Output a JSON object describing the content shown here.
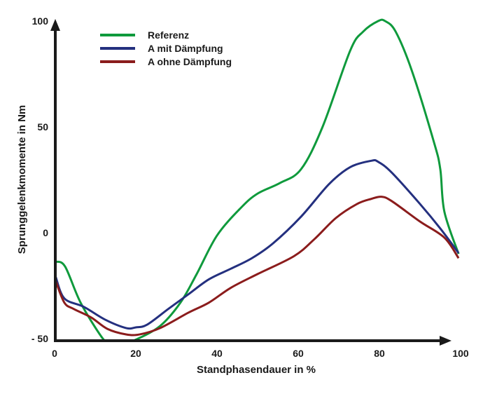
{
  "chart_data": {
    "type": "line",
    "title": "",
    "xlabel": "Standphasendauer in %",
    "ylabel": "Sprunggelenkmomente in Nm",
    "xlim": [
      0,
      100
    ],
    "ylim": [
      -50,
      100
    ],
    "xticks": [
      "0",
      "20",
      "40",
      "60",
      "80",
      "100"
    ],
    "yticks": [
      "- 50",
      "0",
      "50",
      "100"
    ],
    "grid": false,
    "legend_position": "top-left",
    "series": [
      {
        "name": "Referenz",
        "color": "#0f9a3c",
        "x": [
          0.3,
          2.6,
          6.4,
          11.5,
          13,
          16,
          20,
          26,
          31,
          35,
          40,
          46,
          50,
          55.5,
          60.7,
          66,
          72.8,
          76,
          79.7,
          81.4,
          84,
          88,
          93.4,
          95,
          96,
          99.5
        ],
        "y": [
          -13.6,
          -16,
          -33,
          -49,
          -51,
          -53,
          -50.5,
          -44,
          -33,
          -19.5,
          -1.3,
          12,
          18.5,
          23.5,
          30,
          50,
          86,
          95,
          100,
          100,
          95,
          76.5,
          43,
          30,
          10,
          -10
        ]
      },
      {
        "name": "A mit Dämpfung",
        "color": "#24307f",
        "x": [
          0.3,
          2.4,
          7.2,
          12.4,
          17.6,
          20,
          22.8,
          28,
          33,
          38,
          43.4,
          48.6,
          53.8,
          60.7,
          67.6,
          72.8,
          78,
          79.7,
          83,
          90,
          95,
          99.5
        ],
        "y": [
          -21,
          -31,
          -35,
          -41,
          -45,
          -44.7,
          -43.4,
          -36,
          -29,
          -22,
          -17,
          -12,
          -5,
          7.6,
          23,
          31,
          34,
          33.5,
          28.5,
          13.6,
          2,
          -9.6
        ]
      },
      {
        "name": "A ohne Dämpfung",
        "color": "#8b1c1c",
        "x": [
          0.3,
          2.4,
          4.7,
          9,
          13,
          17.6,
          21,
          26,
          33,
          38,
          43.4,
          50,
          59,
          64,
          69.3,
          74.5,
          78,
          80.5,
          83,
          90,
          96,
          99.5
        ],
        "y": [
          -23,
          -33,
          -36,
          -40,
          -45.4,
          -48,
          -48,
          -45,
          -37.7,
          -33,
          -26,
          -19.5,
          -11,
          -3,
          7,
          13.6,
          16,
          17,
          15,
          5.3,
          -2.3,
          -12
        ]
      }
    ]
  }
}
